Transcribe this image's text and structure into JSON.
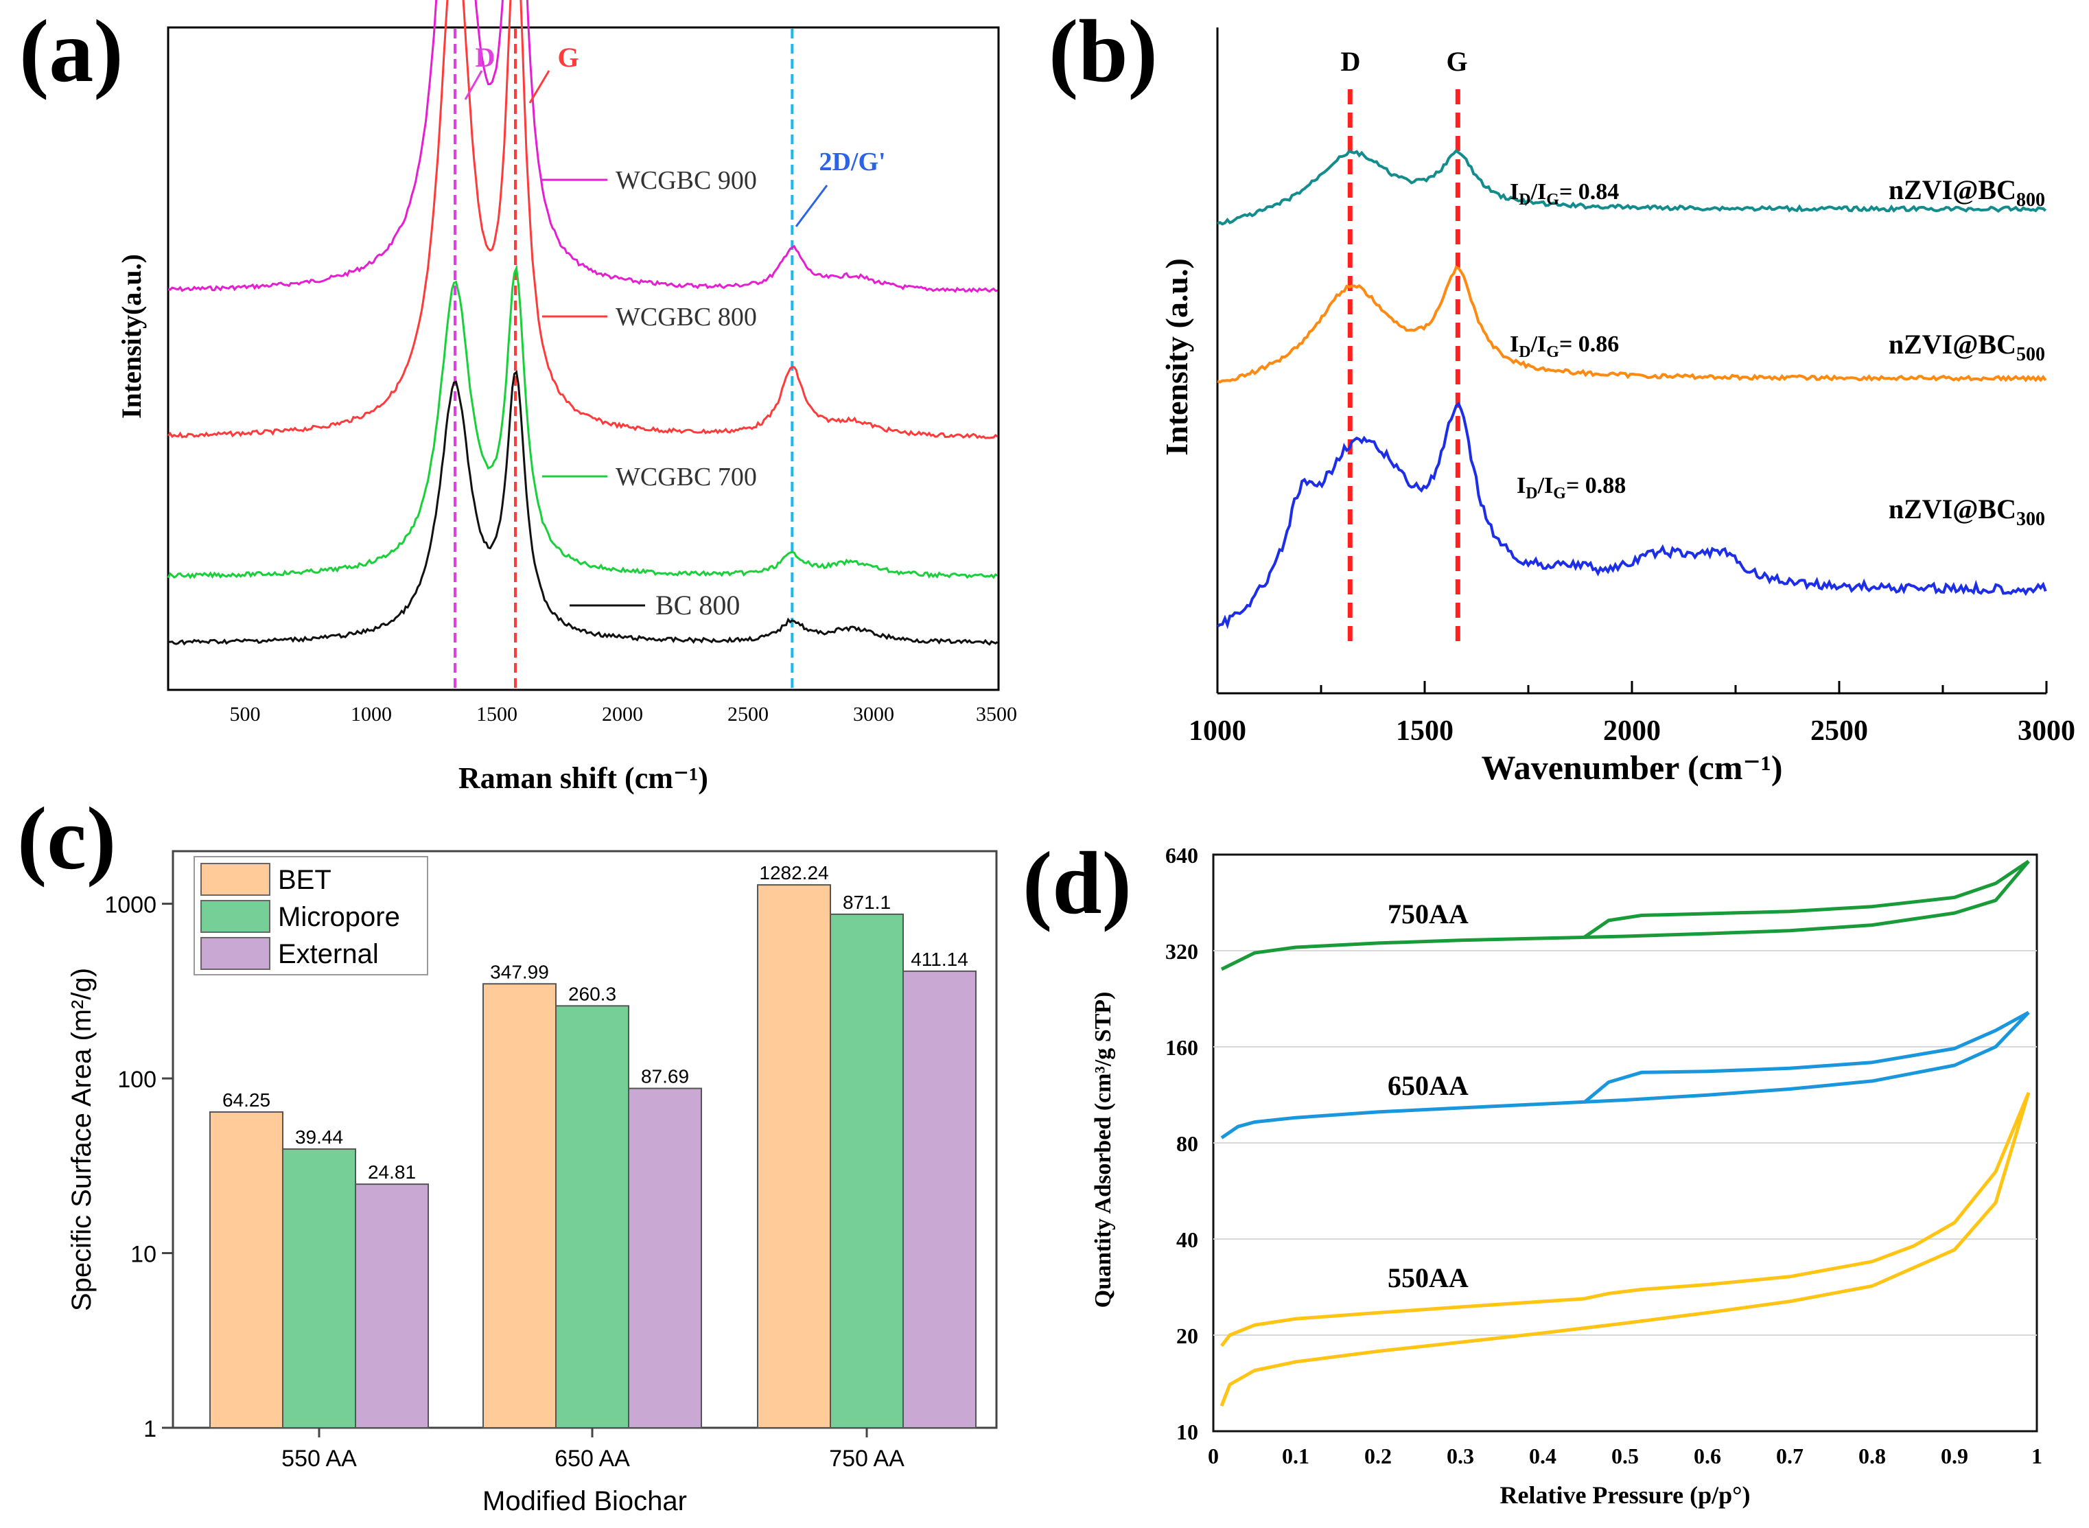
{
  "panel_labels": [
    "(a)",
    "(b)",
    "(c)",
    "(d)"
  ],
  "chart_data": [
    {
      "panel": "(a)",
      "type": "line",
      "title": "",
      "xlabel": "Raman shift (cm⁻¹)",
      "ylabel": "Intensity(a.u.)",
      "xlim": [
        200,
        3500
      ],
      "xticks": [
        "500",
        "1000",
        "1500",
        "2000",
        "2500",
        "3000",
        "3500"
      ],
      "reference_lines": [
        {
          "label": "D",
          "x": 1340,
          "color": "#e040e0"
        },
        {
          "label": "G",
          "x": 1580,
          "color": "#ff3b3b"
        },
        {
          "label": "2D/G'",
          "x": 2680,
          "color": "#19b8f0"
        }
      ],
      "series": [
        {
          "name": "WCGBC 900",
          "color": "#e61ed2",
          "baseline": 0.4,
          "d_peak": 0.84,
          "g_peak": 0.78,
          "d2_peak": 0.06
        },
        {
          "name": "WCGBC 800",
          "color": "#ff3a3a",
          "baseline": 0.62,
          "d_peak": 0.75,
          "g_peak": 0.72,
          "d2_peak": 0.1
        },
        {
          "name": "WCGBC 700",
          "color": "#19d03a",
          "baseline": 0.83,
          "d_peak": 0.43,
          "g_peak": 0.43,
          "d2_peak": 0.03
        },
        {
          "name": "BC 800",
          "color": "#111111",
          "baseline": 0.93,
          "d_peak": 0.38,
          "g_peak": 0.38,
          "d2_peak": 0.03
        }
      ]
    },
    {
      "panel": "(b)",
      "type": "line",
      "title": "",
      "xlabel": "Wavenumber (cm⁻¹)",
      "ylabel": "Intensity (a.u.)",
      "xlim": [
        1000,
        3000
      ],
      "xticks": [
        "1000",
        "1500",
        "2000",
        "2500",
        "3000"
      ],
      "reference_lines": [
        {
          "label": "D",
          "x": 1320,
          "color": "#ff2020"
        },
        {
          "label": "G",
          "x": 1580,
          "color": "#ff2020"
        }
      ],
      "series": [
        {
          "name": "nZVI@BC",
          "name_sub": "800",
          "ratio_label": "= 0.84",
          "color": "#128c8c"
        },
        {
          "name": "nZVI@BC",
          "name_sub": "500",
          "ratio_label": "= 0.86",
          "color": "#ff8a12"
        },
        {
          "name": "nZVI@BC",
          "name_sub": "300",
          "ratio_label": "= 0.88",
          "color": "#1c2ee8"
        }
      ],
      "ratio_prefix": "I",
      "ratio_sub_d": "D",
      "ratio_sub_g": "G"
    },
    {
      "panel": "(c)",
      "type": "bar",
      "scale": "log",
      "xlabel": "Modified Biochar",
      "ylabel": "Specific Surface Area (m²/g)",
      "ylim": [
        1,
        2000
      ],
      "yticks": [
        "1",
        "10",
        "100",
        "1000"
      ],
      "categories": [
        "550 AA",
        "650 AA",
        "750 AA"
      ],
      "legend_position": "top-left",
      "series": [
        {
          "name": "BET",
          "color": "#ffcc99",
          "values": [
            64.25,
            347.99,
            1282.24
          ],
          "labels": [
            "64.25",
            "347.99",
            "1282.24"
          ]
        },
        {
          "name": "Micropore",
          "color": "#77cf98",
          "values": [
            39.44,
            260.3,
            871.1
          ],
          "labels": [
            "39.44",
            "260.3",
            "871.1"
          ]
        },
        {
          "name": "External",
          "color": "#c9a8d4",
          "values": [
            24.81,
            87.69,
            411.14
          ],
          "labels": [
            "24.81",
            "87.69",
            "411.14"
          ]
        }
      ]
    },
    {
      "panel": "(d)",
      "type": "line",
      "scale": "log",
      "xlabel": "Relative Pressure (p/p°)",
      "ylabel": "Quantity Adsorbed (cm³/g STP)",
      "xlim": [
        0,
        1
      ],
      "ylim": [
        10,
        640
      ],
      "xticks": [
        "0",
        "0.1",
        "0.2",
        "0.3",
        "0.4",
        "0.5",
        "0.6",
        "0.7",
        "0.8",
        "0.9",
        "1"
      ],
      "yticks": [
        "10",
        "20",
        "40",
        "80",
        "160",
        "320",
        "640"
      ],
      "series": [
        {
          "name": "750AA",
          "color": "#1a9b3a",
          "adsorption": [
            [
              0.01,
              280
            ],
            [
              0.05,
              315
            ],
            [
              0.1,
              328
            ],
            [
              0.2,
              338
            ],
            [
              0.3,
              345
            ],
            [
              0.4,
              350
            ],
            [
              0.5,
              355
            ],
            [
              0.6,
              362
            ],
            [
              0.7,
              370
            ],
            [
              0.8,
              385
            ],
            [
              0.9,
              420
            ],
            [
              0.95,
              460
            ],
            [
              0.99,
              610
            ]
          ],
          "desorption": [
            [
              0.99,
              610
            ],
            [
              0.95,
              520
            ],
            [
              0.9,
              470
            ],
            [
              0.8,
              440
            ],
            [
              0.7,
              425
            ],
            [
              0.6,
              418
            ],
            [
              0.52,
              413
            ],
            [
              0.48,
              398
            ],
            [
              0.45,
              352
            ]
          ]
        },
        {
          "name": "650AA",
          "color": "#1a96dd",
          "adsorption": [
            [
              0.01,
              83
            ],
            [
              0.03,
              90
            ],
            [
              0.05,
              93
            ],
            [
              0.1,
              96
            ],
            [
              0.2,
              100
            ],
            [
              0.3,
              103
            ],
            [
              0.4,
              106
            ],
            [
              0.5,
              109
            ],
            [
              0.6,
              113
            ],
            [
              0.7,
              118
            ],
            [
              0.8,
              125
            ],
            [
              0.9,
              140
            ],
            [
              0.95,
              160
            ],
            [
              0.99,
              205
            ]
          ],
          "desorption": [
            [
              0.99,
              205
            ],
            [
              0.95,
              180
            ],
            [
              0.9,
              158
            ],
            [
              0.8,
              143
            ],
            [
              0.7,
              137
            ],
            [
              0.6,
              134
            ],
            [
              0.52,
              133
            ],
            [
              0.48,
              124
            ],
            [
              0.45,
              107
            ]
          ]
        },
        {
          "name": "550AA",
          "color": "#ffc414",
          "adsorption": [
            [
              0.01,
              12
            ],
            [
              0.02,
              14
            ],
            [
              0.05,
              15.5
            ],
            [
              0.1,
              16.5
            ],
            [
              0.2,
              17.8
            ],
            [
              0.3,
              19
            ],
            [
              0.4,
              20.3
            ],
            [
              0.5,
              21.8
            ],
            [
              0.6,
              23.5
            ],
            [
              0.7,
              25.5
            ],
            [
              0.8,
              28.5
            ],
            [
              0.9,
              37
            ],
            [
              0.95,
              52
            ],
            [
              0.99,
              115
            ]
          ],
          "desorption": [
            [
              0.99,
              115
            ],
            [
              0.95,
              65
            ],
            [
              0.9,
              45
            ],
            [
              0.85,
              38
            ],
            [
              0.8,
              34
            ],
            [
              0.7,
              30.5
            ],
            [
              0.6,
              28.8
            ],
            [
              0.52,
              27.8
            ],
            [
              0.48,
              27
            ],
            [
              0.45,
              26
            ],
            [
              0.3,
              24.5
            ],
            [
              0.2,
              23.5
            ],
            [
              0.1,
              22.5
            ],
            [
              0.05,
              21.5
            ],
            [
              0.02,
              20
            ],
            [
              0.01,
              18.5
            ]
          ]
        }
      ]
    }
  ]
}
